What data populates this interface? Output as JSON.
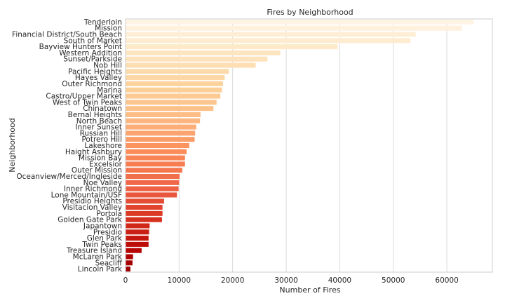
{
  "chart_data": {
    "type": "bar",
    "orientation": "horizontal",
    "title": "Fires by Neighborhood",
    "xlabel": "Number of Fires",
    "ylabel": "Neighborhood",
    "xlim": [
      0,
      68500
    ],
    "xticks": [
      0,
      10000,
      20000,
      30000,
      40000,
      50000,
      60000
    ],
    "grid": "vertical",
    "colormap": "OrRd reversed (light at top, dark red at bottom)",
    "categories": [
      "Tenderloin",
      "Mission",
      "Financial District/South Beach",
      "South of Market",
      "Bayview Hunters Point",
      "Western Addition",
      "Sunset/Parkside",
      "Nob Hill",
      "Pacific Heights",
      "Hayes Valley",
      "Outer Richmond",
      "Marina",
      "Castro/Upper Market",
      "West of Twin Peaks",
      "Chinatown",
      "Bernal Heights",
      "North Beach",
      "Inner Sunset",
      "Russian Hill",
      "Potrero Hill",
      "Lakeshore",
      "Haight Ashbury",
      "Mission Bay",
      "Excelsior",
      "Outer Mission",
      "Oceanview/Merced/Ingleside",
      "Noe Valley",
      "Inner Richmond",
      "Lone Mountain/USF",
      "Presidio Heights",
      "Visitacion Valley",
      "Portola",
      "Golden Gate Park",
      "Japantown",
      "Presidio",
      "Glen Park",
      "Twin Peaks",
      "Treasure Island",
      "McLaren Park",
      "Seacliff",
      "Lincoln Park"
    ],
    "values": [
      65000,
      62800,
      54200,
      53200,
      39600,
      28900,
      26500,
      24300,
      19300,
      18500,
      18200,
      18000,
      17700,
      17000,
      16400,
      14000,
      13900,
      13200,
      13000,
      12900,
      11900,
      11400,
      11100,
      11100,
      10600,
      10100,
      10000,
      9900,
      9600,
      7200,
      6900,
      6900,
      6800,
      4500,
      4400,
      4300,
      4300,
      3000,
      1400,
      1300,
      900
    ]
  }
}
